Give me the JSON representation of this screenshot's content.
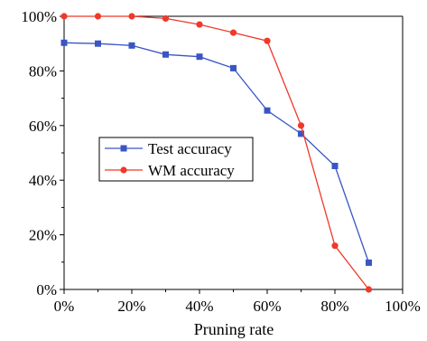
{
  "chart_data": {
    "type": "line",
    "title": "",
    "xlabel": "Pruning rate",
    "ylabel": "",
    "x": [
      0,
      10,
      20,
      30,
      40,
      50,
      60,
      70,
      80,
      90
    ],
    "xlim": [
      0,
      100
    ],
    "ylim": [
      0,
      100
    ],
    "x_ticks": [
      0,
      20,
      40,
      60,
      80,
      100
    ],
    "x_tick_labels": [
      "0%",
      "20%",
      "40%",
      "60%",
      "80%",
      "100%"
    ],
    "y_ticks": [
      0,
      20,
      40,
      60,
      80,
      100
    ],
    "y_tick_labels": [
      "0%",
      "20%",
      "40%",
      "60%",
      "80%",
      "100%"
    ],
    "grid": false,
    "legend_position": "center-left",
    "series": [
      {
        "name": "Test accuracy",
        "color": "#3a55c4",
        "marker": "square",
        "values": [
          90.3,
          90,
          89.3,
          86,
          85.2,
          81,
          65.5,
          57,
          45.2,
          9.8
        ]
      },
      {
        "name": "WM accuracy",
        "color": "#f0382b",
        "marker": "circle",
        "values": [
          100,
          100,
          100,
          99.2,
          97,
          94,
          91,
          60,
          16,
          0
        ]
      }
    ]
  }
}
